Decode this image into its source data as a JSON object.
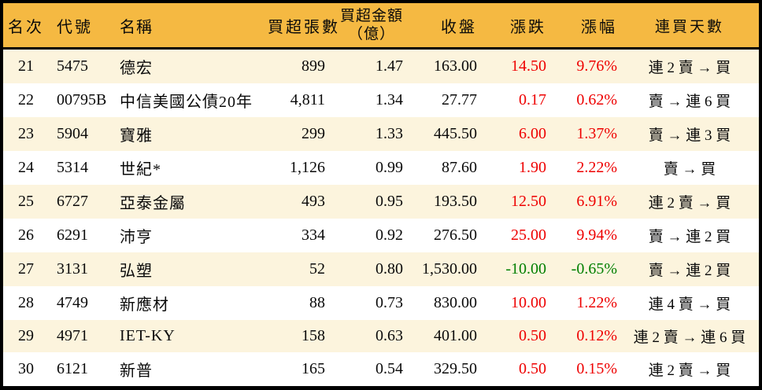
{
  "colors": {
    "header_bg": "#F5B942",
    "row_alt": "#FCF4DD",
    "up": "#EE0000",
    "down": "#007F00",
    "border": "#000000",
    "text": "#0A0A0A"
  },
  "table": {
    "header": {
      "rank": "名次",
      "code": "代號",
      "name": "名稱",
      "volume": "買超張數",
      "amount_line1": "買超金額",
      "amount_line2": "（億）",
      "close": "收盤",
      "change": "漲跌",
      "change_pct": "漲幅",
      "streak": "連買天數"
    }
  },
  "chart_data": {
    "type": "table",
    "columns": [
      "名次",
      "代號",
      "名稱",
      "買超張數",
      "買超金額（億）",
      "收盤",
      "漲跌",
      "漲幅",
      "連買天數"
    ],
    "rows": [
      [
        "21",
        "5475",
        "德宏",
        "899",
        "1.47",
        "163.00",
        "14.50",
        "9.76%",
        "連 2 賣 → 買"
      ],
      [
        "22",
        "00795B",
        "中信美國公債20年",
        "4,811",
        "1.34",
        "27.77",
        "0.17",
        "0.62%",
        "賣 → 連 6 買"
      ],
      [
        "23",
        "5904",
        "寶雅",
        "299",
        "1.33",
        "445.50",
        "6.00",
        "1.37%",
        "賣 → 連 3 買"
      ],
      [
        "24",
        "5314",
        "世紀*",
        "1,126",
        "0.99",
        "87.60",
        "1.90",
        "2.22%",
        "賣 → 買"
      ],
      [
        "25",
        "6727",
        "亞泰金屬",
        "493",
        "0.95",
        "193.50",
        "12.50",
        "6.91%",
        "連 2 賣 → 買"
      ],
      [
        "26",
        "6291",
        "沛亨",
        "334",
        "0.92",
        "276.50",
        "25.00",
        "9.94%",
        "賣 → 連 2 買"
      ],
      [
        "27",
        "3131",
        "弘塑",
        "52",
        "0.80",
        "1,530.00",
        "-10.00",
        "-0.65%",
        "賣 → 連 2 買"
      ],
      [
        "28",
        "4749",
        "新應材",
        "88",
        "0.73",
        "830.00",
        "10.00",
        "1.22%",
        "連 4 賣 → 買"
      ],
      [
        "29",
        "4971",
        "IET-KY",
        "158",
        "0.63",
        "401.00",
        "0.50",
        "0.12%",
        "連 2 賣 → 連 6 買"
      ],
      [
        "30",
        "6121",
        "新普",
        "165",
        "0.54",
        "329.50",
        "0.50",
        "0.15%",
        "連 2 賣 → 買"
      ]
    ]
  }
}
